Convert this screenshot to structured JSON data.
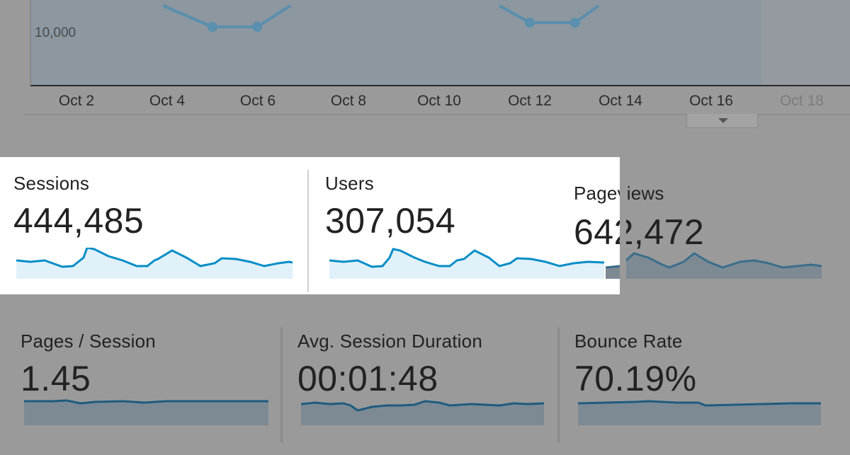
{
  "main_chart": {
    "y_tick": "10,000",
    "x_labels": [
      "Oct 2",
      "Oct 4",
      "Oct 6",
      "Oct 8",
      "Oct 10",
      "Oct 12",
      "Oct 14",
      "Oct 16",
      "Oct 18"
    ]
  },
  "metrics": {
    "sessions": {
      "label": "Sessions",
      "value": "444,485"
    },
    "users": {
      "label": "Users",
      "value": "307,054"
    },
    "pageviews": {
      "label": "Pageviews",
      "value": "642,472"
    },
    "pages_per_session": {
      "label": "Pages / Session",
      "value": "1.45"
    },
    "avg_session_duration": {
      "label": "Avg. Session Duration",
      "value": "00:01:48"
    },
    "bounce_rate": {
      "label": "Bounce Rate",
      "value": "70.19%"
    }
  },
  "colors": {
    "line_blue": "#058dc7",
    "fill_blue": "#e1f1fa",
    "background_gray": "#9a9a9a",
    "highlight_white": "#ffffff"
  }
}
